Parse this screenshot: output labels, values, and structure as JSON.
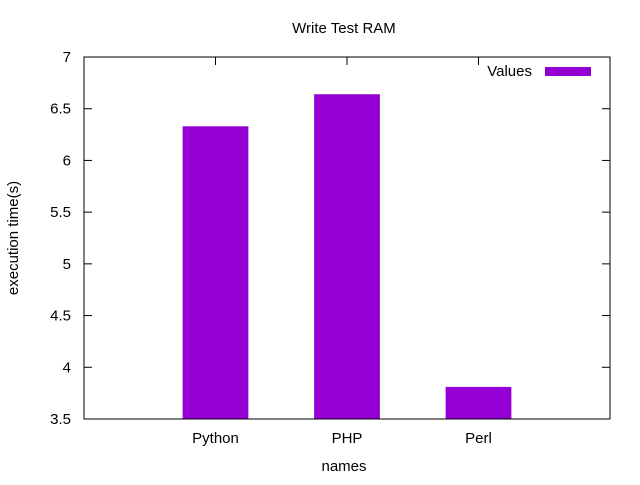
{
  "chart_data": {
    "type": "bar",
    "title": "Write Test RAM",
    "xlabel": "names",
    "ylabel": "execution time(s)",
    "categories": [
      "Python",
      "PHP",
      "Perl"
    ],
    "series": [
      {
        "name": "Values",
        "values": [
          6.33,
          6.64,
          3.81
        ],
        "color": "#9400d3"
      }
    ],
    "ylim": [
      3.5,
      7
    ],
    "yticks": [
      3.5,
      4,
      4.5,
      5,
      5.5,
      6,
      6.5,
      7
    ],
    "ytick_labels": [
      "3.5",
      "4",
      "4.5",
      "5",
      "5.5",
      "6",
      "6.5",
      "7"
    ],
    "grid": false,
    "legend_position": "top-right"
  }
}
